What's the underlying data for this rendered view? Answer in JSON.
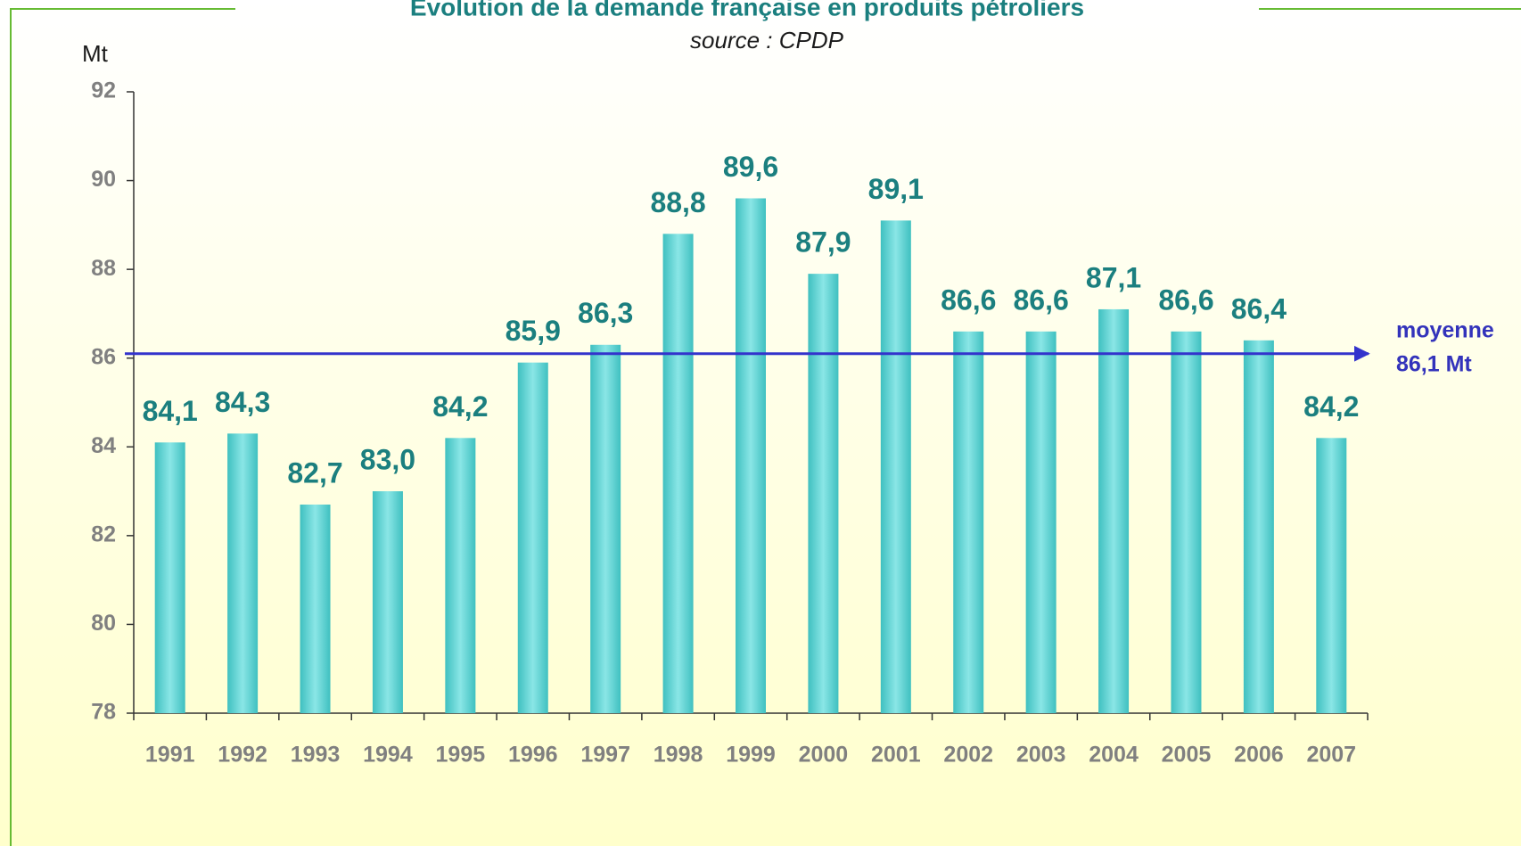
{
  "chart_data": {
    "type": "bar",
    "title": "Evolution de la demande française en produits pétroliers",
    "subtitle": "source : CPDP",
    "y_label": "Mt",
    "categories": [
      "1991",
      "1992",
      "1993",
      "1994",
      "1995",
      "1996",
      "1997",
      "1998",
      "1999",
      "2000",
      "2001",
      "2002",
      "2003",
      "2004",
      "2005",
      "2006",
      "2007"
    ],
    "values": [
      84.1,
      84.3,
      82.7,
      83.0,
      84.2,
      85.9,
      86.3,
      88.8,
      89.6,
      87.9,
      89.1,
      86.6,
      86.6,
      87.1,
      86.6,
      86.4,
      84.2
    ],
    "value_labels": [
      "84,1",
      "84,3",
      "82,7",
      "83,0",
      "84,2",
      "85,9",
      "86,3",
      "88,8",
      "89,6",
      "87,9",
      "89,1",
      "86,6",
      "86,6",
      "87,1",
      "86,6",
      "86,4",
      "84,2"
    ],
    "color": "#66d6d6",
    "mean": 86.1,
    "mean_color": "#3333cc",
    "annotations": [
      "moyenne",
      "86,1 Mt"
    ],
    "ylim": [
      78,
      92
    ],
    "yticks": [
      78,
      80,
      82,
      84,
      86,
      88,
      90,
      92
    ]
  }
}
